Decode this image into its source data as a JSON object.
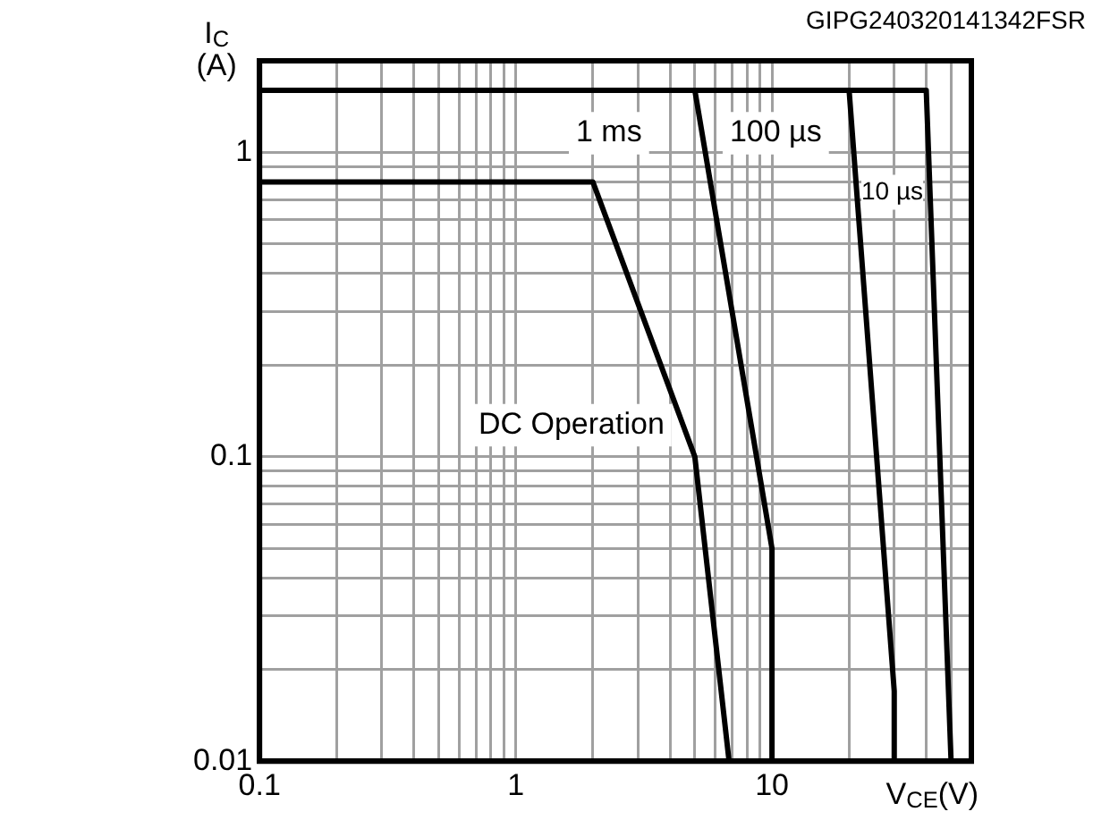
{
  "chart_data": {
    "type": "line",
    "xlabel": "V$_{CE}$(V)",
    "ylabel": "I$_{C}$ (A)",
    "log": "xy",
    "grid": true,
    "line_style": "solid",
    "xlim": [
      0.1,
      60
    ],
    "ylim": [
      0.01,
      2
    ],
    "xticks": [
      0.1,
      {
        "value": 0.2,
        "label": null
      },
      {
        "value": 0.3,
        "label": null
      },
      {
        "value": 0.4,
        "label": null
      },
      {
        "value": 0.5,
        "label": null
      },
      {
        "value": 0.6,
        "label": null
      },
      {
        "value": 0.7,
        "label": null
      },
      {
        "value": 0.8,
        "label": null
      },
      {
        "value": 0.9,
        "label": null
      },
      1,
      {
        "value": 2,
        "label": null
      },
      {
        "value": 3,
        "label": null
      },
      {
        "value": 4,
        "label": null
      },
      {
        "value": 5,
        "label": null
      },
      {
        "value": 6,
        "label": null
      },
      {
        "value": 7,
        "label": null
      },
      {
        "value": 8,
        "label": null
      },
      {
        "value": 9,
        "label": null
      },
      10,
      {
        "value": 20,
        "label": null
      },
      {
        "value": 30,
        "label": null
      },
      {
        "value": 40,
        "label": null
      },
      {
        "value": 50,
        "label": null
      },
      {
        "value": 60,
        "label": null
      }
    ],
    "yticks": [
      0.01,
      {
        "value": 0.02,
        "label": null
      },
      {
        "value": 0.03,
        "label": null
      },
      {
        "value": 0.04,
        "label": null
      },
      {
        "value": 0.05,
        "label": null
      },
      {
        "value": 0.06,
        "label": null
      },
      {
        "value": 0.07,
        "label": null
      },
      {
        "value": 0.08,
        "label": null
      },
      {
        "value": 0.09,
        "label": null
      },
      0.1,
      {
        "value": 0.2,
        "label": null
      },
      {
        "value": 0.3,
        "label": null
      },
      {
        "value": 0.4,
        "label": null
      },
      {
        "value": 0.5,
        "label": null
      },
      {
        "value": 0.6,
        "label": null
      },
      {
        "value": 0.7,
        "label": null
      },
      {
        "value": 0.8,
        "label": null
      },
      {
        "value": 0.9,
        "label": null
      },
      1,
      {
        "value": 2,
        "label": null
      }
    ],
    "series": [
      {
        "name": "DC Operation",
        "color": "#000000",
        "x": [
          0.1,
          2,
          5,
          6.8
        ],
        "values": [
          0.8,
          0.8,
          0.1,
          0.01
        ]
      },
      {
        "name": "1 ms",
        "color": "#000000",
        "x": [
          0.1,
          5,
          10,
          10
        ],
        "values": [
          1.6,
          1.6,
          0.05,
          0.01
        ]
      },
      {
        "name": "100 µs",
        "color": "#000000",
        "x": [
          0.1,
          20,
          30,
          30
        ],
        "values": [
          1.6,
          1.6,
          0.017,
          0.01
        ]
      },
      {
        "name": "10 µs",
        "color": "#000000",
        "x": [
          0.1,
          40,
          50
        ],
        "values": [
          1.6,
          1.6,
          0.01
        ]
      }
    ],
    "annotations": [
      "GIPG240320141342FSR"
    ]
  }
}
